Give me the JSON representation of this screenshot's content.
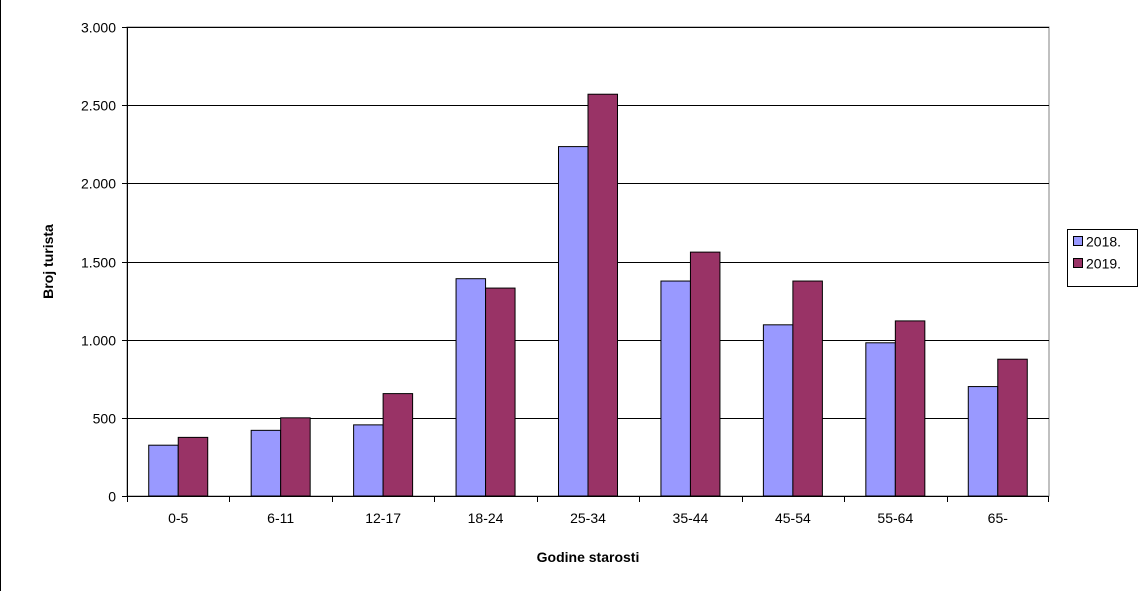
{
  "chart_data": {
    "type": "bar",
    "categories": [
      "0-5",
      "6-11",
      "12-17",
      "18-24",
      "25-34",
      "35-44",
      "45-54",
      "55-64",
      "65-"
    ],
    "series": [
      {
        "name": "2018.",
        "color": "#9999ff",
        "values": [
          325,
          420,
          455,
          1390,
          2235,
          1375,
          1095,
          980,
          700
        ]
      },
      {
        "name": "2019.",
        "color": "#993366",
        "values": [
          375,
          500,
          655,
          1330,
          2570,
          1560,
          1375,
          1120,
          875
        ]
      }
    ],
    "xlabel": "Godine starosti",
    "ylabel": "Broj turista",
    "ylim": [
      0,
      3000
    ],
    "yticks": [
      0,
      500,
      1000,
      1500,
      2000,
      2500,
      3000
    ],
    "ytick_labels": [
      "0",
      "500",
      "1.000",
      "1.500",
      "2.000",
      "2.500",
      "3.000"
    ],
    "grid": true,
    "legend_position": "right"
  }
}
